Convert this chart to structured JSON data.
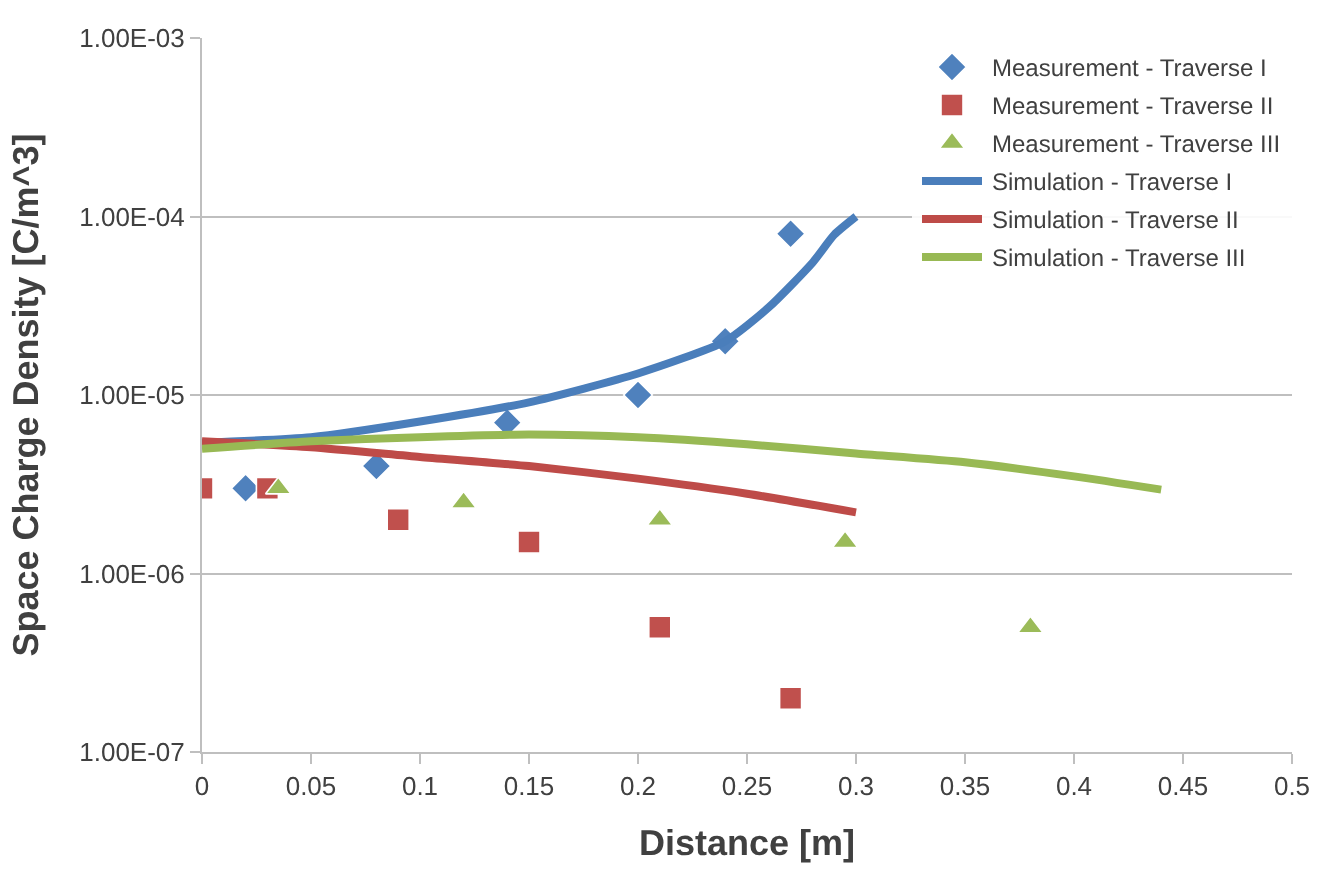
{
  "chart_data": {
    "type": "scatter",
    "xlabel": "Distance [m]",
    "ylabel": "Space Charge Density [C/m^3]",
    "log": "y",
    "grid": "y",
    "legend": "top right",
    "xlim": [
      0,
      0.5
    ],
    "xticks": [
      0,
      0.05,
      0.1,
      0.15,
      0.2,
      0.25,
      0.3,
      0.35,
      0.4,
      0.45,
      0.5
    ],
    "ylim": [
      1e-07,
      0.001
    ],
    "yticks": [
      {
        "value": 1e-07,
        "label": "1.00E-07"
      },
      {
        "value": 1e-06,
        "label": "1.00E-06"
      },
      {
        "value": 1e-05,
        "label": "1.00E-05"
      },
      {
        "value": 0.0001,
        "label": "1.00E-04"
      },
      {
        "value": 0.001,
        "label": "1.00E-03"
      }
    ],
    "series": [
      {
        "name": "Measurement - Traverse I",
        "marker": "diamond",
        "color": "#4f81bd",
        "x": [
          0.02,
          0.08,
          0.14,
          0.2,
          0.24,
          0.27
        ],
        "values": [
          3e-06,
          4e-06,
          7e-06,
          1e-05,
          2e-05,
          8e-05
        ]
      },
      {
        "name": "Measurement - Traverse II",
        "marker": "square",
        "color": "#c0504d",
        "x": [
          0,
          0.03,
          0.09,
          0.15,
          0.21,
          0.27
        ],
        "values": [
          3e-06,
          3e-06,
          2e-06,
          1.5e-06,
          5e-07,
          2e-07
        ]
      },
      {
        "name": "Measurement - Traverse III",
        "marker": "triangle",
        "color": "#9bbb59",
        "x": [
          0.035,
          0.12,
          0.21,
          0.295,
          0.38
        ],
        "values": [
          3e-06,
          2.5e-06,
          2e-06,
          1.5e-06,
          5e-07
        ]
      },
      {
        "name": "Simulation - Traverse I",
        "type": "line",
        "color": "#4a7ebb",
        "x": [
          0,
          0.05,
          0.1,
          0.15,
          0.2,
          0.24,
          0.26,
          0.28,
          0.29,
          0.3
        ],
        "values": [
          5.4e-06,
          5.8e-06,
          7.1e-06,
          9.1e-06,
          1.32e-05,
          2e-05,
          3.1e-05,
          5.5e-05,
          7.9e-05,
          0.0001
        ]
      },
      {
        "name": "Simulation - Traverse II",
        "type": "line",
        "color": "#be4b48",
        "x": [
          0,
          0.05,
          0.1,
          0.15,
          0.2,
          0.25,
          0.3
        ],
        "values": [
          5.5e-06,
          5.1e-06,
          4.5e-06,
          4e-06,
          3.4e-06,
          2.8e-06,
          2.2e-06
        ]
      },
      {
        "name": "Simulation - Traverse III",
        "type": "line",
        "color": "#98b954",
        "x": [
          0,
          0.05,
          0.1,
          0.15,
          0.2,
          0.25,
          0.3,
          0.35,
          0.4,
          0.44
        ],
        "values": [
          5e-06,
          5.5e-06,
          5.8e-06,
          6e-06,
          5.8e-06,
          5.3e-06,
          4.7e-06,
          4.2e-06,
          3.5e-06,
          2.95e-06
        ]
      }
    ]
  }
}
